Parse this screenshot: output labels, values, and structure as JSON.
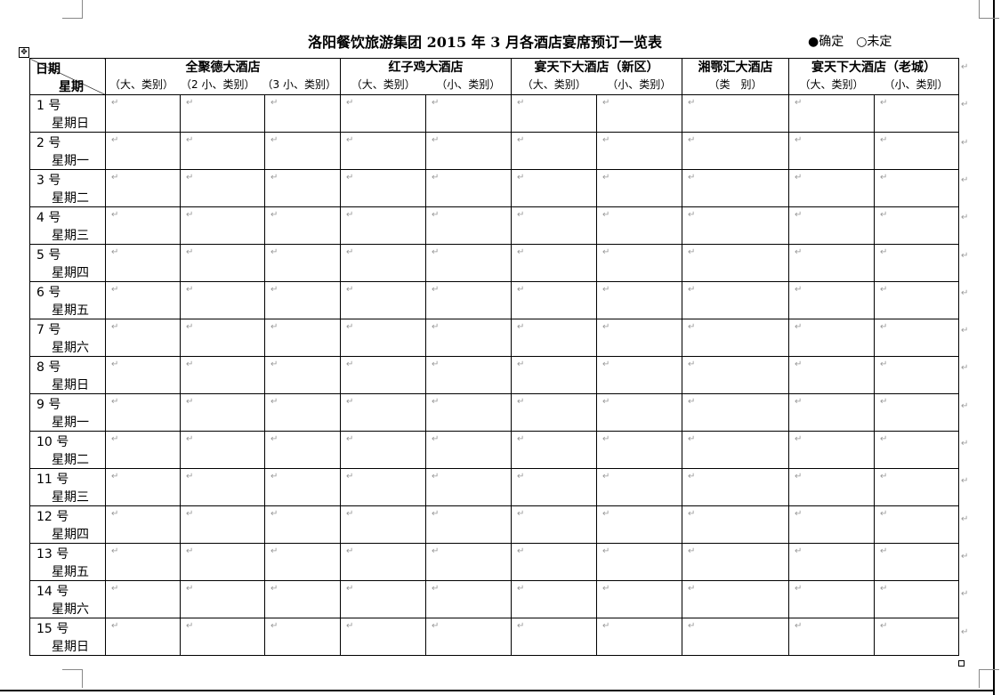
{
  "title": "洛阳餐饮旅游集团 2015 年 3 月各酒店宴席预订一览表",
  "legend": {
    "confirmed": "●确定",
    "pending": "○未定"
  },
  "corner": {
    "top": "日期",
    "bottom": "星期"
  },
  "hotels": [
    {
      "name": "全聚德大酒店",
      "subs": [
        "（大、类别）",
        "（2 小、类别）",
        "（3 小、类别）"
      ]
    },
    {
      "name": "红子鸡大酒店",
      "subs": [
        "（大、类别）",
        "（小、类别）"
      ]
    },
    {
      "name": "宴天下大酒店（新区）",
      "subs": [
        "（大、类别）",
        "（小、类别）"
      ]
    },
    {
      "name": "湘鄂汇大酒店",
      "subs": [
        "（类　别）"
      ]
    },
    {
      "name": "宴天下大酒店（老城）",
      "subs": [
        "（大、类别）",
        "（小、类别）"
      ]
    }
  ],
  "rows": [
    {
      "date": "1 号",
      "weekday": "星期日"
    },
    {
      "date": "2 号",
      "weekday": "星期一"
    },
    {
      "date": "3 号",
      "weekday": "星期二"
    },
    {
      "date": "4 号",
      "weekday": "星期三"
    },
    {
      "date": "5 号",
      "weekday": "星期四"
    },
    {
      "date": "6 号",
      "weekday": "星期五"
    },
    {
      "date": "7 号",
      "weekday": "星期六"
    },
    {
      "date": "8 号",
      "weekday": "星期日"
    },
    {
      "date": "9 号",
      "weekday": "星期一"
    },
    {
      "date": "10 号",
      "weekday": "星期二"
    },
    {
      "date": "11 号",
      "weekday": "星期三"
    },
    {
      "date": "12 号",
      "weekday": "星期四"
    },
    {
      "date": "13 号",
      "weekday": "星期五"
    },
    {
      "date": "14 号",
      "weekday": "星期六"
    },
    {
      "date": "15 号",
      "weekday": "星期日"
    }
  ],
  "paragraph_mark": "↵"
}
